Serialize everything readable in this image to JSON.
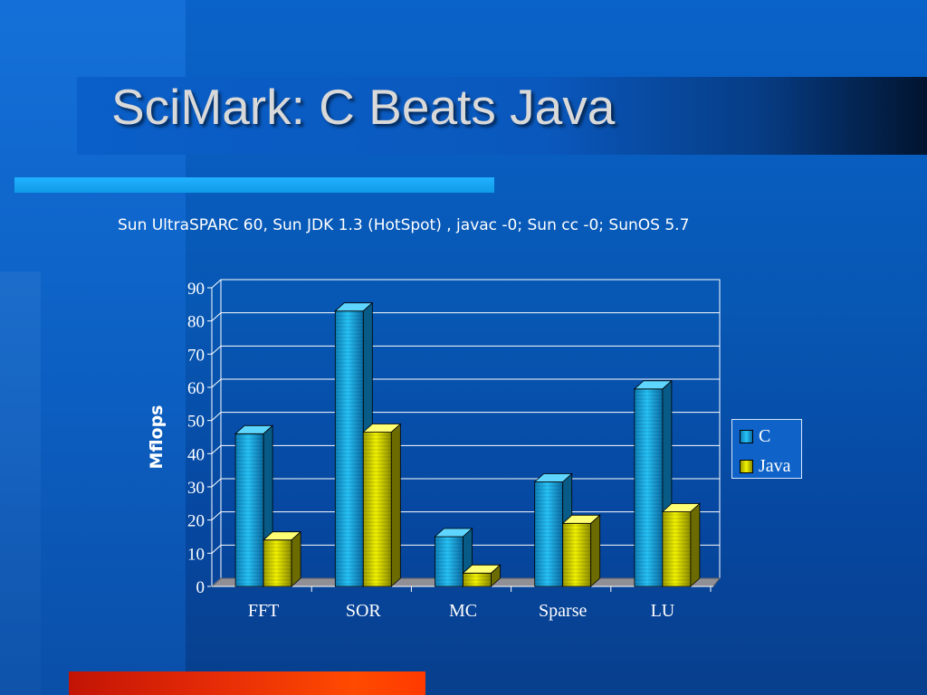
{
  "slide": {
    "title": "SciMark: C Beats Java",
    "subtitle": "Sun UltraSPARC 60, Sun JDK 1.3 (HotSpot) , javac -0;  Sun cc -0;  SunOS 5.7"
  },
  "chart_data": {
    "type": "bar",
    "style": "3d-clustered",
    "categories": [
      "FFT",
      "SOR",
      "MC",
      "Sparse",
      "LU"
    ],
    "series": [
      {
        "name": "C",
        "values": [
          46,
          83,
          15,
          31.5,
          59.5
        ],
        "color": "#1fb4ee"
      },
      {
        "name": "Java",
        "values": [
          14,
          46.5,
          4,
          19,
          22.5
        ],
        "color": "#e0e000"
      }
    ],
    "xlabel": "",
    "ylabel": "Mflops",
    "ylim": [
      0,
      90
    ],
    "yticks": [
      "0",
      "10",
      "20",
      "30",
      "40",
      "50",
      "60",
      "70",
      "80",
      "90"
    ],
    "grid": true,
    "legend": "right"
  }
}
